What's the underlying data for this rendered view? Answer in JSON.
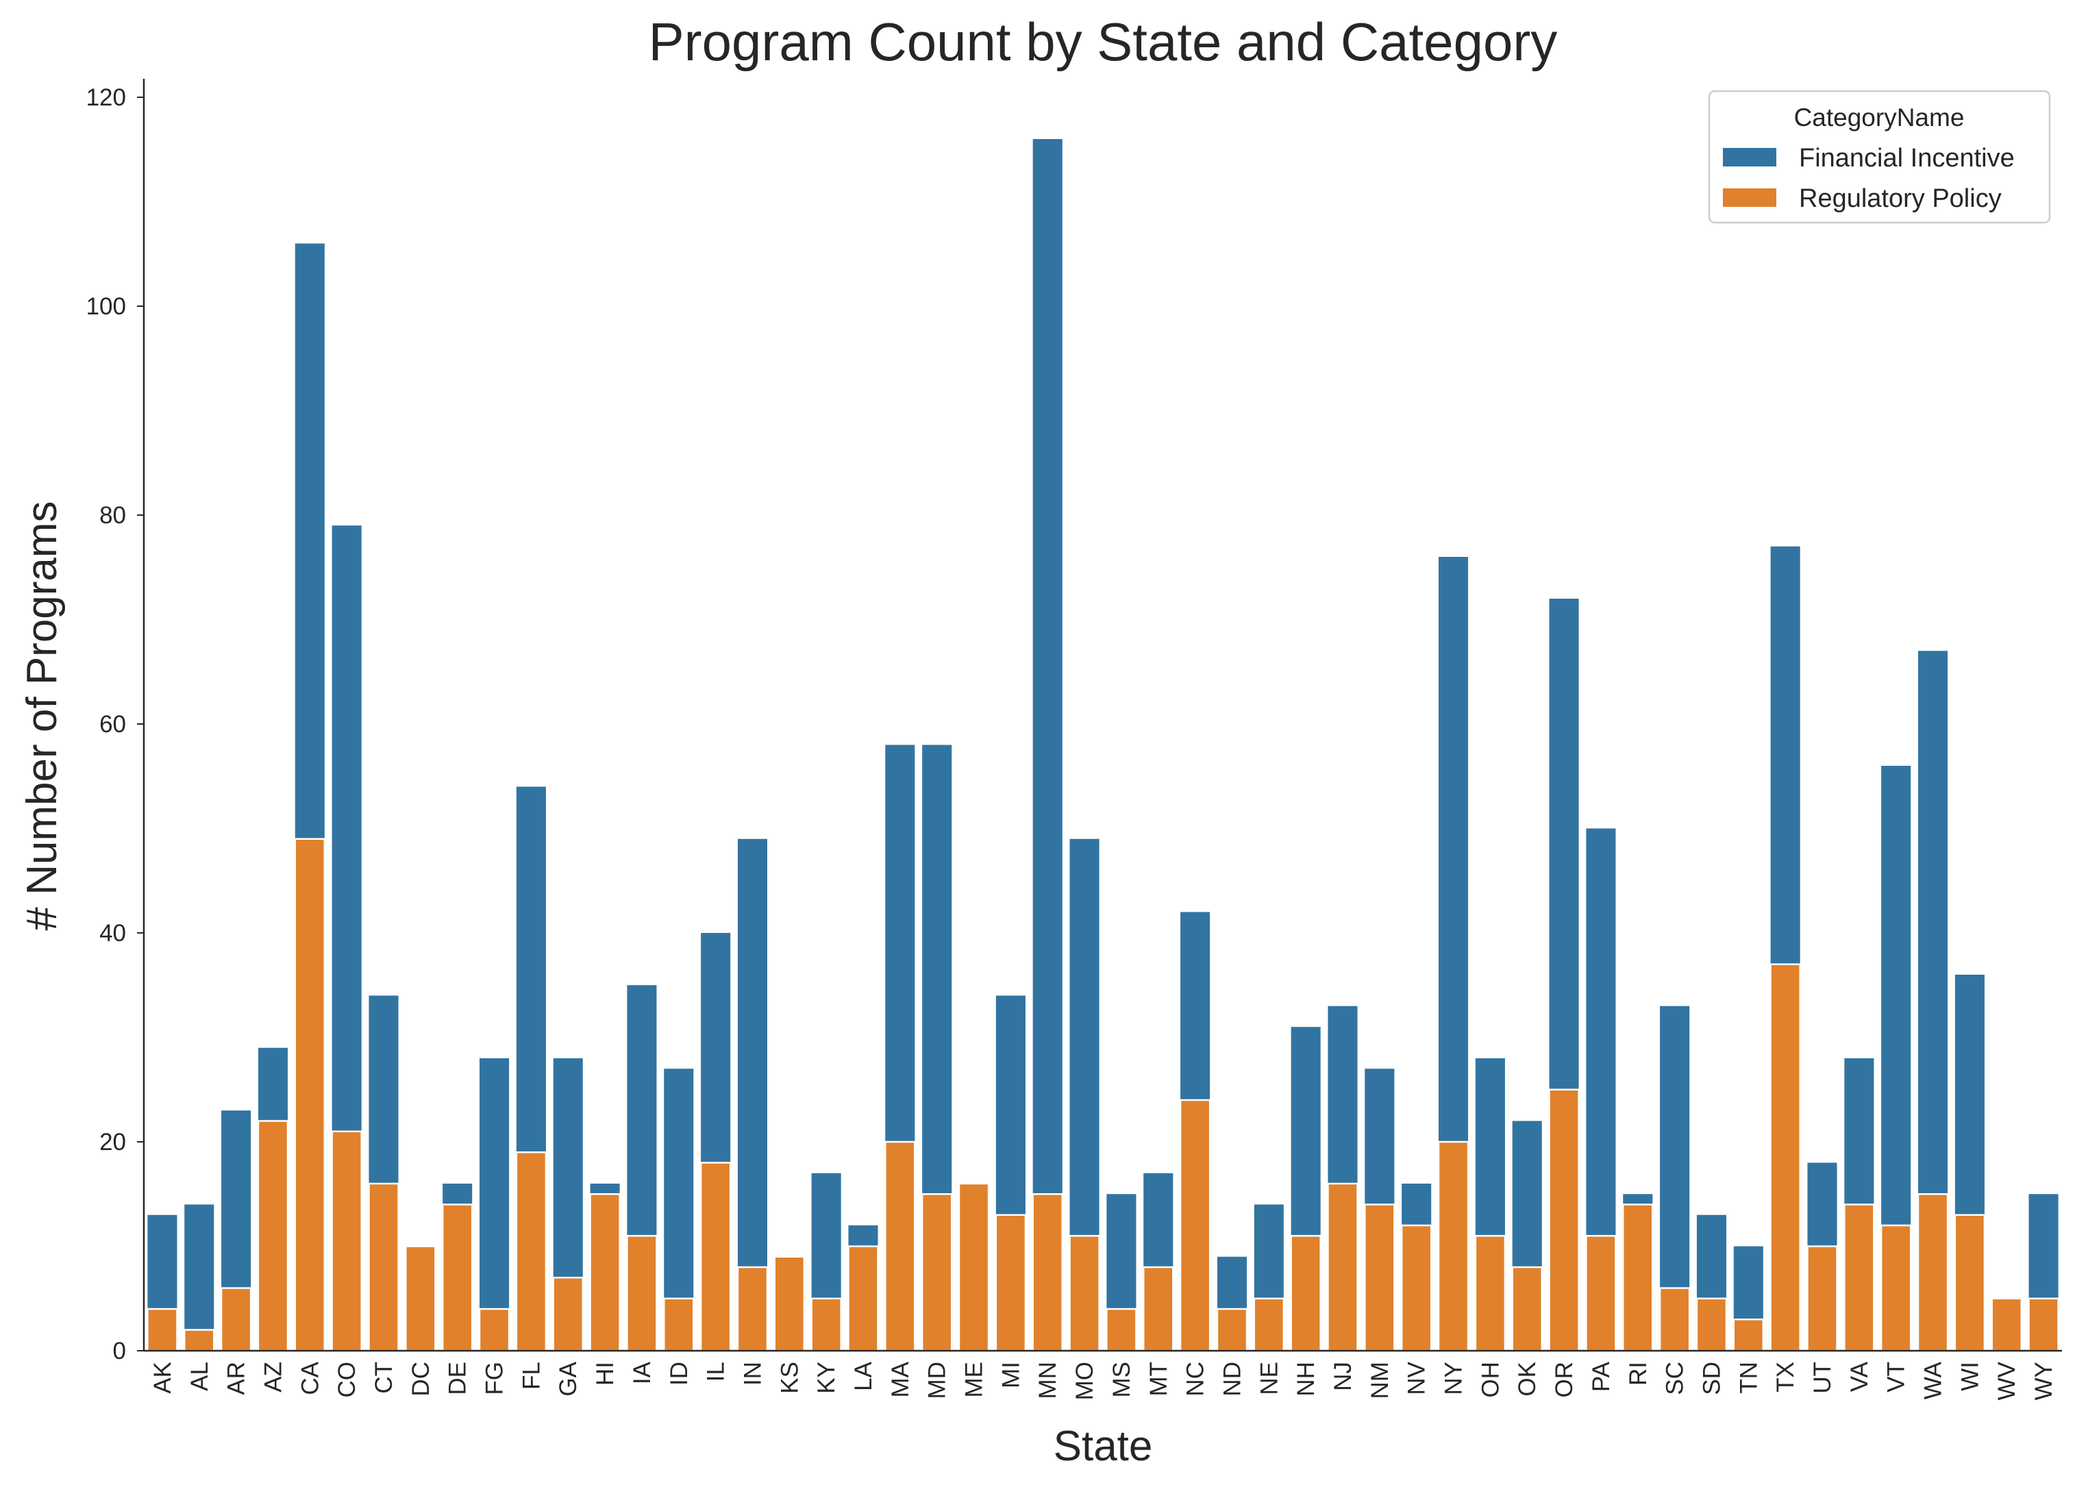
{
  "chart_data": {
    "type": "bar",
    "stacked": true,
    "title": "Program Count by State and Category",
    "xlabel": "State",
    "ylabel": "# Number of Programs",
    "ylim": [
      0,
      122
    ],
    "yticks": [
      0,
      20,
      40,
      60,
      80,
      100,
      120
    ],
    "grid": false,
    "legend": {
      "title": "CategoryName",
      "position": "top-right"
    },
    "categories": [
      "AK",
      "AL",
      "AR",
      "AZ",
      "CA",
      "CO",
      "CT",
      "DC",
      "DE",
      "FG",
      "FL",
      "GA",
      "HI",
      "IA",
      "ID",
      "IL",
      "IN",
      "KS",
      "KY",
      "LA",
      "MA",
      "MD",
      "ME",
      "MI",
      "MN",
      "MO",
      "MS",
      "MT",
      "NC",
      "ND",
      "NE",
      "NH",
      "NJ",
      "NM",
      "NV",
      "NY",
      "OH",
      "OK",
      "OR",
      "PA",
      "RI",
      "SC",
      "SD",
      "TN",
      "TX",
      "UT",
      "VA",
      "VT",
      "WA",
      "WI",
      "WV",
      "WY"
    ],
    "series": [
      {
        "name": "Financial Incentive",
        "color": "#3274a1",
        "total_height": [
          13,
          14,
          23,
          29,
          106,
          79,
          34,
          10,
          16,
          28,
          54,
          28,
          16,
          35,
          27,
          40,
          49,
          9,
          17,
          12,
          58,
          58,
          16,
          34,
          116,
          49,
          15,
          17,
          42,
          9,
          14,
          31,
          33,
          27,
          16,
          76,
          28,
          22,
          72,
          50,
          15,
          33,
          13,
          10,
          77,
          18,
          28,
          56,
          67,
          36,
          5,
          15
        ]
      },
      {
        "name": "Regulatory Policy",
        "color": "#e1812c",
        "values": [
          4,
          2,
          6,
          22,
          49,
          21,
          16,
          10,
          14,
          4,
          19,
          7,
          15,
          11,
          5,
          18,
          8,
          9,
          5,
          10,
          20,
          15,
          16,
          13,
          15,
          11,
          4,
          8,
          24,
          4,
          5,
          11,
          16,
          14,
          12,
          20,
          11,
          8,
          25,
          11,
          14,
          6,
          5,
          3,
          37,
          10,
          14,
          12,
          15,
          13,
          5,
          5
        ]
      }
    ]
  }
}
